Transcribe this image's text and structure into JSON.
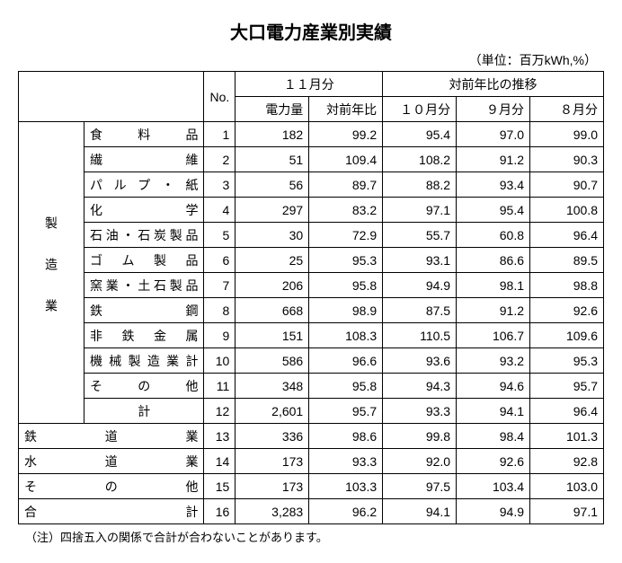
{
  "title": "大口電力産業別実績",
  "unit": "（単位：百万kWh,%）",
  "header": {
    "no": "No.",
    "month_group": "１１月分",
    "yoy_group": "対前年比の推移",
    "power": "電力量",
    "yoy": "対前年比",
    "m10": "１０月分",
    "m9": "９月分",
    "m8": "８月分"
  },
  "manufacturing_label": "製造業",
  "rows_manufacturing": [
    {
      "name": "食料品",
      "no": "1",
      "power": "182",
      "yoy": "99.2",
      "m10": "95.4",
      "m9": "97.0",
      "m8": "99.0"
    },
    {
      "name": "繊維",
      "no": "2",
      "power": "51",
      "yoy": "109.4",
      "m10": "108.2",
      "m9": "91.2",
      "m8": "90.3"
    },
    {
      "name": "パルプ・紙",
      "no": "3",
      "power": "56",
      "yoy": "89.7",
      "m10": "88.2",
      "m9": "93.4",
      "m8": "90.7"
    },
    {
      "name": "化学",
      "no": "4",
      "power": "297",
      "yoy": "83.2",
      "m10": "97.1",
      "m9": "95.4",
      "m8": "100.8"
    },
    {
      "name": "石油・石炭製品",
      "no": "5",
      "power": "30",
      "yoy": "72.9",
      "m10": "55.7",
      "m9": "60.8",
      "m8": "96.4"
    },
    {
      "name": "ゴム製品",
      "no": "6",
      "power": "25",
      "yoy": "95.3",
      "m10": "93.1",
      "m9": "86.6",
      "m8": "89.5"
    },
    {
      "name": "窯業・土石製品",
      "no": "7",
      "power": "206",
      "yoy": "95.8",
      "m10": "94.9",
      "m9": "98.1",
      "m8": "98.8"
    },
    {
      "name": "鉄鋼",
      "no": "8",
      "power": "668",
      "yoy": "98.9",
      "m10": "87.5",
      "m9": "91.2",
      "m8": "92.6"
    },
    {
      "name": "非鉄金属",
      "no": "9",
      "power": "151",
      "yoy": "108.3",
      "m10": "110.5",
      "m9": "106.7",
      "m8": "109.6"
    },
    {
      "name": "機械製造業計",
      "no": "10",
      "power": "586",
      "yoy": "96.6",
      "m10": "93.6",
      "m9": "93.2",
      "m8": "95.3"
    },
    {
      "name": "その他",
      "no": "11",
      "power": "348",
      "yoy": "95.8",
      "m10": "94.3",
      "m9": "94.6",
      "m8": "95.7"
    },
    {
      "name": "計",
      "no": "12",
      "power": "2,601",
      "yoy": "95.7",
      "m10": "93.3",
      "m9": "94.1",
      "m8": "96.4"
    }
  ],
  "rows_other": [
    {
      "name": "鉄道業",
      "no": "13",
      "power": "336",
      "yoy": "98.6",
      "m10": "99.8",
      "m9": "98.4",
      "m8": "101.3"
    },
    {
      "name": "水道業",
      "no": "14",
      "power": "173",
      "yoy": "93.3",
      "m10": "92.0",
      "m9": "92.6",
      "m8": "92.8"
    },
    {
      "name": "その他",
      "no": "15",
      "power": "173",
      "yoy": "103.3",
      "m10": "97.5",
      "m9": "103.4",
      "m8": "103.0"
    },
    {
      "name": "合計",
      "no": "16",
      "power": "3,283",
      "yoy": "96.2",
      "m10": "94.1",
      "m9": "94.9",
      "m8": "97.1"
    }
  ],
  "note": "（注）四捨五入の関係で合計が合わないことがあります。"
}
